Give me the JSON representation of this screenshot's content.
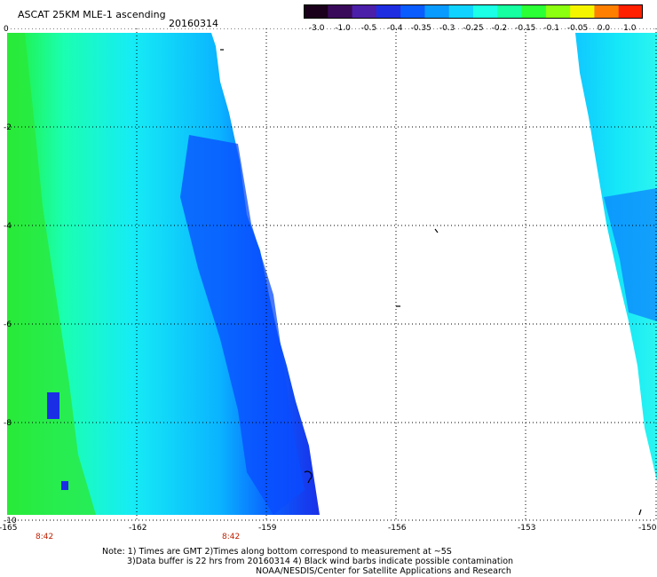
{
  "header": {
    "title": "ASCAT 25KM MLE-1 ascending",
    "date": "20160314"
  },
  "colorbar": {
    "labels": [
      "-3.0",
      "-1.0",
      "-0.5",
      "-0.4",
      "-0.35",
      "-0.3",
      "-0.25",
      "-0.2",
      "-0.15",
      "-0.1",
      "-0.05",
      "0.0",
      "1.0"
    ],
    "colors": [
      "#1a001a",
      "#3a0a5a",
      "#4b1fa8",
      "#1f2de0",
      "#0a5cff",
      "#0a9bff",
      "#10d4ff",
      "#1affe6",
      "#16ffa0",
      "#2bff36",
      "#8cff10",
      "#f5f500",
      "#ff8000",
      "#ff2000"
    ]
  },
  "axes": {
    "x_ticks": [
      "-165",
      "-162",
      "-159",
      "-156",
      "-153",
      "-150"
    ],
    "y_ticks": [
      "0",
      "-2",
      "-4",
      "-6",
      "-8",
      "-10"
    ],
    "x_range": [
      -165,
      -150
    ],
    "y_range": [
      -10,
      0
    ],
    "grid": "dotted"
  },
  "time_labels": [
    "8:42",
    "8:42"
  ],
  "notes": [
    "Note: 1) Times are GMT 2)Times along bottom correspond to measurement at ~5S",
    "3)Data buffer is 22 hrs from 20160314 4) Black wind barbs indicate possible contamination",
    "NOAA/NESDIS/Center for Satellite Applications and Research"
  ]
}
